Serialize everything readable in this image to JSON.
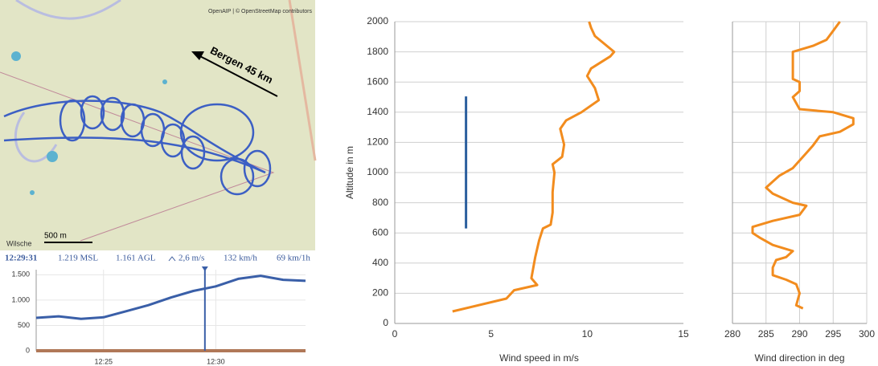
{
  "map": {
    "attribution": "OpenAIP | © OpenStreetMap contributors",
    "direction_label": "Bergen 45 km",
    "scale": "500 m",
    "place": "Wilsche"
  },
  "status": {
    "time": "12:29:31",
    "msl": "1.219 MSL",
    "agl": "1.161 AGL",
    "climb": "2,6 m/s",
    "speed": "132 km/h",
    "wind": "69 km/1h"
  },
  "chart_data": [
    {
      "type": "line",
      "x": [
        "12:22",
        "12:23",
        "12:24",
        "12:25",
        "12:26",
        "12:27",
        "12:28",
        "12:29",
        "12:30",
        "12:31",
        "12:32",
        "12:33",
        "12:34"
      ],
      "series": [
        {
          "color": "#3a5fa8",
          "values": [
            650,
            680,
            630,
            660,
            780,
            900,
            1050,
            1180,
            1270,
            1420,
            1480,
            1400,
            1380
          ]
        },
        {
          "color": "#b07858",
          "values": [
            0,
            0,
            0,
            0,
            0,
            0,
            0,
            0,
            0,
            0,
            0,
            0,
            0
          ]
        }
      ],
      "xlim": [
        "12:22",
        "12:34"
      ],
      "xticks": [
        "12:25",
        "12:30"
      ],
      "ylim": [
        0,
        1600
      ],
      "yticks": [
        0,
        500,
        {
          "value": 1000,
          "label": "1.000"
        },
        {
          "value": 1500,
          "label": "1.500"
        }
      ],
      "grid": "both"
    },
    {
      "type": "line",
      "xlabel": "Wind speed in m/s",
      "ylabel": "Altitude in m",
      "series": [
        {
          "color": "#f28c1e",
          "x": [
            3.0,
            5.8,
            6.2,
            7.4,
            7.1,
            7.3,
            7.5,
            7.7,
            8.1,
            8.2,
            8.2,
            8.3,
            8.2,
            8.7,
            8.8,
            8.6,
            8.9,
            9.7,
            10.6,
            10.4,
            10.0,
            10.2,
            11.2,
            11.4,
            10.4,
            10.2,
            10.1
          ],
          "values": [
            80,
            165,
            220,
            255,
            300,
            440,
            550,
            630,
            655,
            735,
            870,
            1000,
            1055,
            1105,
            1185,
            1290,
            1345,
            1400,
            1480,
            1560,
            1640,
            1690,
            1770,
            1800,
            1905,
            1960,
            2000
          ]
        },
        {
          "color": "#2c5f9e",
          "x": [
            3.7,
            3.7
          ],
          "values": [
            630,
            1505
          ]
        }
      ],
      "xlim": [
        0,
        15
      ],
      "xticks": [
        0,
        5,
        10,
        15
      ],
      "ylim": [
        0,
        2000
      ],
      "yticks": [
        0,
        200,
        400,
        600,
        800,
        1000,
        1200,
        1400,
        1600,
        1800,
        2000
      ],
      "grid": "y"
    },
    {
      "type": "line",
      "xlabel": "Wind direction in deg",
      "series": [
        {
          "color": "#f28c1e",
          "x": [
            290.5,
            289.5,
            290,
            289.5,
            288,
            286,
            286,
            286.5,
            288,
            289,
            286,
            284,
            283,
            283,
            286,
            290,
            291,
            289,
            286,
            285,
            286,
            287,
            289,
            290,
            291,
            292,
            293,
            296,
            298,
            298,
            295,
            290,
            289,
            290,
            290,
            290,
            289,
            289,
            292,
            294,
            295,
            296
          ],
          "values": [
            100,
            120,
            200,
            260,
            290,
            320,
            370,
            420,
            440,
            480,
            520,
            570,
            600,
            640,
            680,
            720,
            780,
            800,
            860,
            900,
            940,
            980,
            1030,
            1080,
            1130,
            1180,
            1240,
            1270,
            1320,
            1360,
            1400,
            1420,
            1500,
            1540,
            1560,
            1600,
            1620,
            1800,
            1840,
            1880,
            1940,
            2000
          ]
        }
      ],
      "xlim": [
        280,
        300
      ],
      "xticks": [
        280,
        285,
        290,
        295,
        300
      ],
      "ylim": [
        0,
        2000
      ],
      "yticks": [
        0,
        200,
        400,
        600,
        800,
        1000,
        1200,
        1400,
        1600,
        1800,
        2000
      ],
      "ytick_labels": false,
      "grid": "both"
    }
  ]
}
